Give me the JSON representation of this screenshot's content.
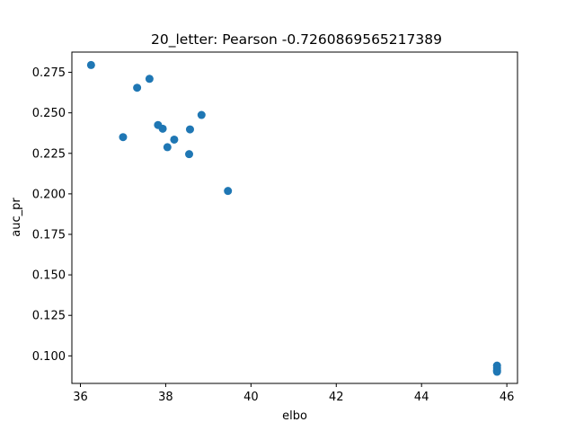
{
  "chart_data": {
    "type": "scatter",
    "title": "20_letter: Pearson -0.7260869565217389",
    "xlabel": "elbo",
    "ylabel": "auc_pr",
    "xlim": [
      35.8,
      46.25
    ],
    "ylim": [
      0.083,
      0.2875
    ],
    "xticks": [
      36,
      38,
      40,
      42,
      44,
      46
    ],
    "yticks": [
      0.1,
      0.125,
      0.15,
      0.175,
      0.2,
      0.225,
      0.25,
      0.275
    ],
    "ytick_labels": [
      "0.100",
      "0.125",
      "0.150",
      "0.175",
      "0.200",
      "0.225",
      "0.250",
      "0.275"
    ],
    "marker_color": "#1f77b4",
    "grid": false,
    "points": [
      {
        "x": 36.25,
        "y": 0.2795
      },
      {
        "x": 37.0,
        "y": 0.235
      },
      {
        "x": 37.33,
        "y": 0.2655
      },
      {
        "x": 37.62,
        "y": 0.271
      },
      {
        "x": 37.82,
        "y": 0.2425
      },
      {
        "x": 37.93,
        "y": 0.2402
      },
      {
        "x": 38.04,
        "y": 0.2288
      },
      {
        "x": 38.2,
        "y": 0.2335
      },
      {
        "x": 38.55,
        "y": 0.2245
      },
      {
        "x": 38.57,
        "y": 0.2398
      },
      {
        "x": 38.84,
        "y": 0.2487
      },
      {
        "x": 39.46,
        "y": 0.2018
      },
      {
        "x": 45.77,
        "y": 0.094
      },
      {
        "x": 45.77,
        "y": 0.0925
      },
      {
        "x": 45.77,
        "y": 0.091
      },
      {
        "x": 45.77,
        "y": 0.0902
      }
    ]
  }
}
